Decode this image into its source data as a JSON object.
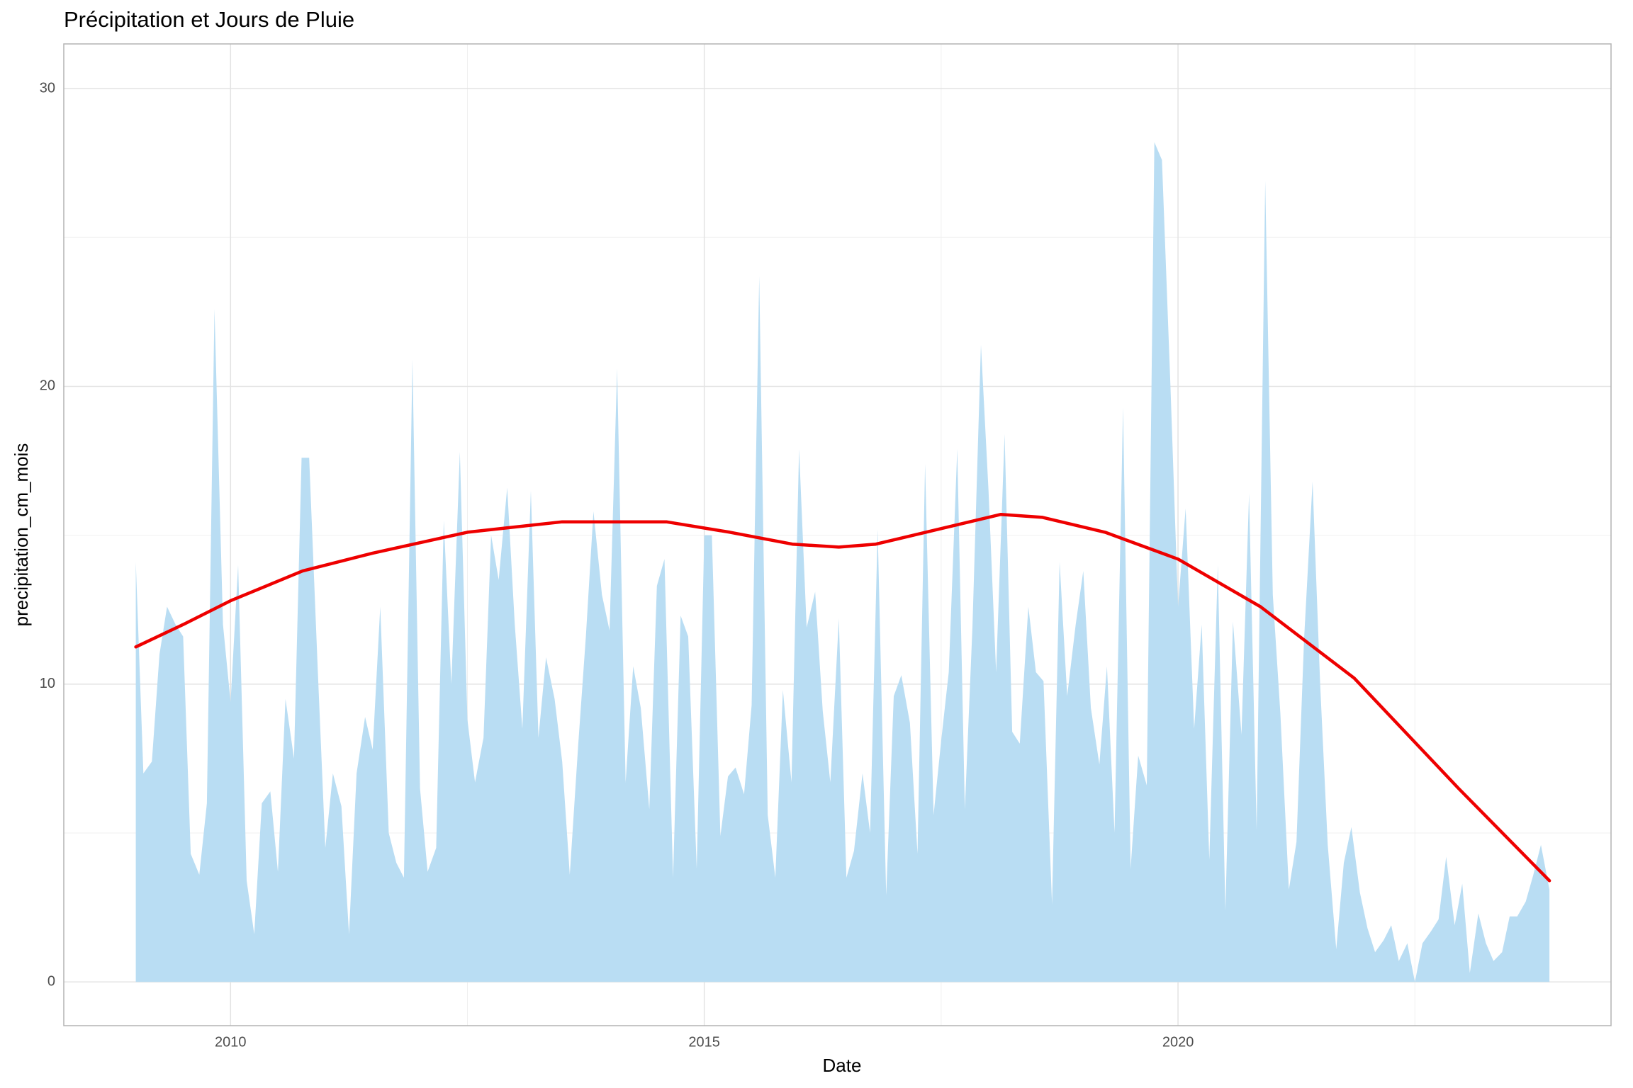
{
  "chart_data": {
    "type": "area",
    "title": "Précipitation et Jours de Pluie",
    "x_label": "Date",
    "y_label": "precipitation_cm_mois",
    "color": "#b9ddf3",
    "x": [
      2009.0,
      2009.08,
      2009.17,
      2009.25,
      2009.33,
      2009.42,
      2009.5,
      2009.58,
      2009.67,
      2009.75,
      2009.83,
      2009.92,
      2010.0,
      2010.08,
      2010.17,
      2010.25,
      2010.33,
      2010.42,
      2010.5,
      2010.58,
      2010.67,
      2010.75,
      2010.83,
      2010.92,
      2011.0,
      2011.08,
      2011.17,
      2011.25,
      2011.33,
      2011.42,
      2011.5,
      2011.58,
      2011.67,
      2011.75,
      2011.83,
      2011.92,
      2012.0,
      2012.08,
      2012.17,
      2012.25,
      2012.33,
      2012.42,
      2012.5,
      2012.58,
      2012.67,
      2012.75,
      2012.83,
      2012.92,
      2013.0,
      2013.08,
      2013.17,
      2013.25,
      2013.33,
      2013.42,
      2013.5,
      2013.58,
      2013.67,
      2013.75,
      2013.83,
      2013.92,
      2014.0,
      2014.08,
      2014.17,
      2014.25,
      2014.33,
      2014.42,
      2014.5,
      2014.58,
      2014.67,
      2014.75,
      2014.83,
      2014.92,
      2015.0,
      2015.08,
      2015.17,
      2015.25,
      2015.33,
      2015.42,
      2015.5,
      2015.58,
      2015.67,
      2015.75,
      2015.83,
      2015.92,
      2016.0,
      2016.08,
      2016.17,
      2016.25,
      2016.33,
      2016.42,
      2016.5,
      2016.58,
      2016.67,
      2016.75,
      2016.83,
      2016.92,
      2017.0,
      2017.08,
      2017.17,
      2017.25,
      2017.33,
      2017.42,
      2017.5,
      2017.58,
      2017.67,
      2017.75,
      2017.83,
      2017.92,
      2018.0,
      2018.08,
      2018.17,
      2018.25,
      2018.33,
      2018.42,
      2018.5,
      2018.58,
      2018.67,
      2018.75,
      2018.83,
      2018.92,
      2019.0,
      2019.08,
      2019.17,
      2019.25,
      2019.33,
      2019.42,
      2019.5,
      2019.58,
      2019.67,
      2019.75,
      2019.83,
      2019.92,
      2020.0,
      2020.08,
      2020.17,
      2020.25,
      2020.33,
      2020.42,
      2020.5,
      2020.58,
      2020.67,
      2020.75,
      2020.83,
      2020.92,
      2021.0,
      2021.08,
      2021.17,
      2021.25,
      2021.33,
      2021.42,
      2021.5,
      2021.58,
      2021.67,
      2021.75,
      2021.83,
      2021.92,
      2022.0,
      2022.08,
      2022.17,
      2022.25,
      2022.33,
      2022.42,
      2022.5,
      2022.58,
      2022.67,
      2022.75,
      2022.83,
      2022.92,
      2023.0,
      2023.08,
      2023.17,
      2023.25,
      2023.33,
      2023.42,
      2023.5,
      2023.58,
      2023.67,
      2023.75,
      2023.83,
      2023.92
    ],
    "values": [
      14.1,
      7.0,
      7.4,
      11.0,
      12.6,
      12.0,
      11.6,
      4.3,
      3.6,
      6.0,
      22.6,
      12.0,
      9.4,
      14.0,
      3.4,
      1.6,
      6.0,
      6.4,
      3.7,
      9.5,
      7.5,
      17.6,
      17.6,
      10.5,
      4.5,
      7.0,
      5.9,
      1.6,
      7.0,
      8.9,
      7.8,
      12.6,
      5.0,
      4.0,
      3.5,
      20.9,
      6.5,
      3.7,
      4.5,
      15.5,
      10.0,
      17.8,
      8.8,
      6.7,
      8.2,
      15.0,
      13.5,
      16.6,
      12.0,
      8.5,
      16.5,
      8.2,
      10.9,
      9.5,
      7.4,
      3.6,
      8.0,
      11.6,
      15.8,
      13.0,
      11.8,
      20.6,
      6.7,
      10.6,
      9.2,
      5.8,
      13.3,
      14.2,
      3.5,
      12.3,
      11.6,
      3.8,
      15.0,
      15.0,
      4.9,
      6.9,
      7.2,
      6.3,
      9.3,
      23.7,
      5.6,
      3.5,
      9.8,
      6.7,
      17.9,
      11.9,
      13.1,
      9.1,
      6.7,
      12.2,
      3.5,
      4.4,
      7.0,
      5.0,
      15.2,
      2.9,
      9.6,
      10.3,
      8.7,
      4.3,
      17.4,
      5.6,
      8.1,
      10.4,
      17.9,
      5.8,
      11.9,
      21.4,
      16.5,
      10.4,
      18.4,
      8.4,
      8.0,
      12.6,
      10.4,
      10.1,
      2.6,
      14.1,
      9.6,
      12.0,
      13.8,
      9.2,
      7.3,
      10.6,
      5.0,
      19.3,
      3.8,
      7.6,
      6.6,
      28.2,
      27.6,
      20.0,
      12.6,
      15.9,
      8.5,
      12.0,
      4.1,
      14.0,
      2.4,
      12.1,
      8.3,
      16.4,
      5.1,
      26.9,
      13.0,
      9.0,
      3.1,
      4.7,
      11.5,
      16.8,
      10.0,
      4.6,
      1.1,
      4.0,
      5.2,
      3.0,
      1.8,
      1.0,
      1.4,
      1.9,
      0.7,
      1.3,
      0.0,
      1.3,
      1.7,
      2.1,
      4.2,
      1.9,
      3.3,
      0.3,
      2.3,
      1.3,
      0.7,
      1.0,
      2.2,
      2.2,
      2.7,
      3.6,
      4.6,
      3.1
    ],
    "trend": {
      "color": "#ee0000",
      "x": [
        2009.0,
        2009.5,
        2010.0,
        2010.76,
        2011.5,
        2012.5,
        2013.5,
        2014.6,
        2015.27,
        2015.93,
        2016.42,
        2016.81,
        2017.47,
        2018.13,
        2018.57,
        2019.23,
        2020.0,
        2020.87,
        2021.86,
        2022.96,
        2023.92
      ],
      "values": [
        11.25,
        12.0,
        12.8,
        13.8,
        14.4,
        15.1,
        15.45,
        15.45,
        15.1,
        14.7,
        14.6,
        14.7,
        15.2,
        15.7,
        15.6,
        15.1,
        14.2,
        12.6,
        10.2,
        6.5,
        3.4
      ]
    },
    "xlim": [
      2008.24,
      2024.57
    ],
    "ylim": [
      -1.47,
      31.5
    ],
    "xticks": [
      2010,
      2015,
      2020
    ],
    "yticks": [
      0,
      10,
      20,
      30
    ],
    "xminor": [
      2012.5,
      2017.5,
      2022.5
    ],
    "yminor": [
      5,
      15,
      25
    ],
    "grid": true
  }
}
